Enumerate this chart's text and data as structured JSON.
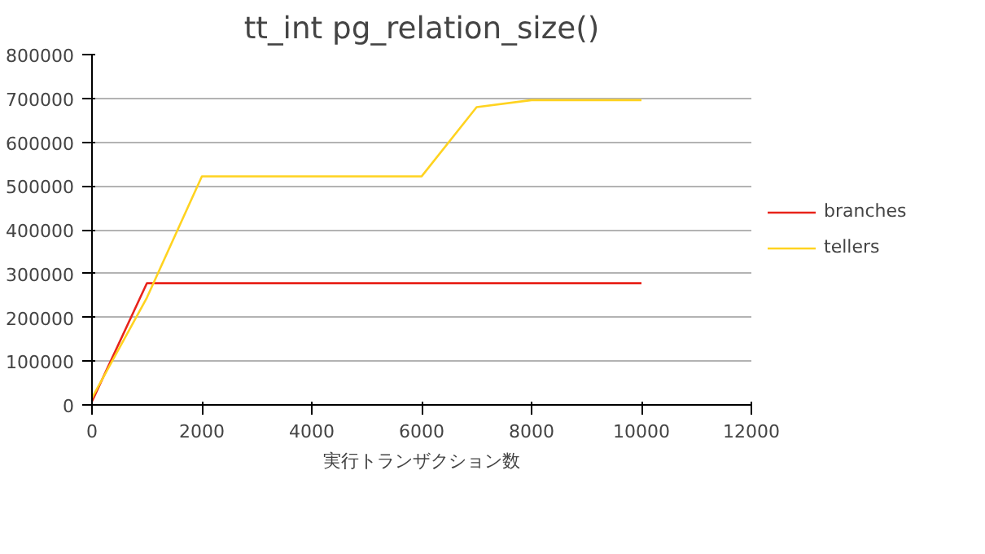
{
  "chart_data": {
    "type": "line",
    "title": "tt_int pg_relation_size()",
    "xlabel": "実行トランザクション数",
    "x": [
      0,
      1000,
      2000,
      3000,
      4000,
      5000,
      6000,
      7000,
      8000,
      9000,
      10000
    ],
    "series": [
      {
        "name": "branches",
        "color": "#e8231a",
        "values": [
          8000,
          278000,
          278000,
          278000,
          278000,
          278000,
          278000,
          278000,
          278000,
          278000,
          278000
        ]
      },
      {
        "name": "tellers",
        "color": "#ffd320",
        "values": [
          16000,
          245000,
          522000,
          522000,
          522000,
          522000,
          522000,
          680000,
          696000,
          696000,
          696000
        ]
      }
    ],
    "xlim": [
      0,
      12000
    ],
    "xticks": [
      0,
      2000,
      4000,
      6000,
      8000,
      10000,
      12000
    ],
    "ylim": [
      0,
      800000
    ],
    "yticks": [
      0,
      100000,
      200000,
      300000,
      400000,
      500000,
      600000,
      700000,
      800000
    ],
    "grid": "y",
    "legend": "right",
    "marker": "none",
    "line_style": "solid"
  }
}
